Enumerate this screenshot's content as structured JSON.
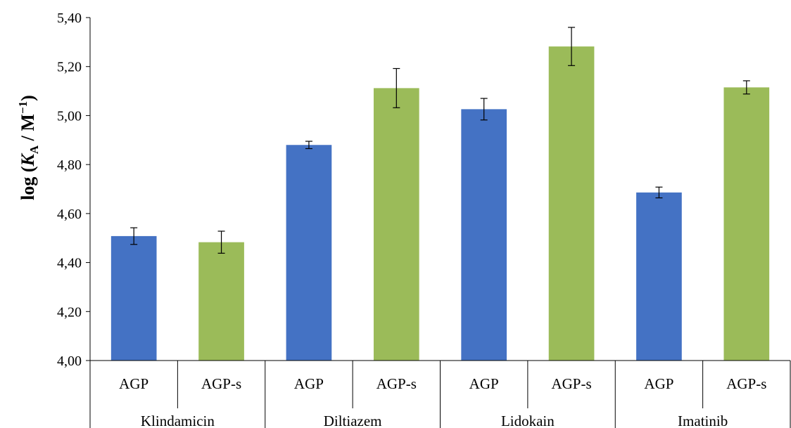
{
  "chart_data": {
    "type": "bar",
    "ylabel_parts": [
      "log (",
      "K",
      "A",
      " / M",
      "−1",
      ")"
    ],
    "ylim": [
      4.0,
      5.4
    ],
    "yticks": [
      "4,00",
      "4,20",
      "4,40",
      "4,60",
      "4,80",
      "5,00",
      "5,20",
      "5,40"
    ],
    "ytick_values": [
      4.0,
      4.2,
      4.4,
      4.6,
      4.8,
      5.0,
      5.2,
      5.4
    ],
    "grid": false,
    "legend": "none",
    "groups": [
      "Klindamicin",
      "Diltiazem",
      "Lidokain",
      "Imatinib"
    ],
    "subcategories": [
      "AGP",
      "AGP-s"
    ],
    "colors": {
      "AGP": "#4472C4",
      "AGP-s": "#9BBB59"
    },
    "values": [
      [
        4.508,
        4.483
      ],
      [
        4.88,
        5.112
      ],
      [
        5.026,
        5.282
      ],
      [
        4.686,
        5.115
      ]
    ],
    "errors": [
      [
        0.034,
        0.045
      ],
      [
        0.015,
        0.08
      ],
      [
        0.044,
        0.078
      ],
      [
        0.022,
        0.027
      ]
    ]
  }
}
